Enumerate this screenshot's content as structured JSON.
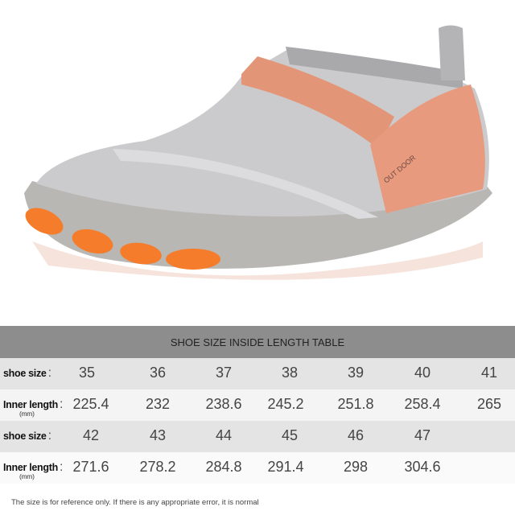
{
  "product": {
    "shoe_print": "OUT DOOR",
    "colors": {
      "upper": "#c9c9cb",
      "accent": "#f07a45",
      "sole": "#b8b6b3",
      "toe": "#f57c2a"
    }
  },
  "table": {
    "title": "SHOE SIZE INSIDE LENGTH TABLE",
    "size_label": "shoe size",
    "length_label": "Inner length",
    "length_unit": "(mm)",
    "colon": ":",
    "rows": [
      {
        "sizes": [
          "35",
          "36",
          "37",
          "38",
          "39",
          "40",
          "41"
        ],
        "lengths": [
          "225.4",
          "232",
          "238.6",
          "245.2",
          "251.8",
          "258.4",
          "265"
        ]
      },
      {
        "sizes": [
          "42",
          "43",
          "44",
          "45",
          "46",
          "47"
        ],
        "lengths": [
          "271.6",
          "278.2",
          "284.8",
          "291.4",
          "298",
          "304.6"
        ]
      }
    ],
    "note": "The size is for reference only. If there is any appropriate error, it is normal"
  }
}
